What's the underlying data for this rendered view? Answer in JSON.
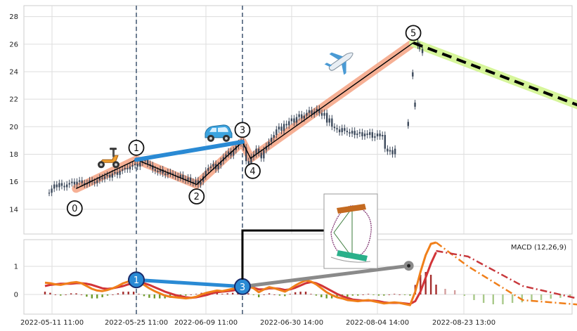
{
  "chart_data": [
    {
      "type": "candlestick",
      "panel": "price",
      "ylim": [
        12.2,
        28.8
      ],
      "yticks": [
        14,
        16,
        18,
        20,
        22,
        24,
        26,
        28
      ],
      "grid": true,
      "colors": {
        "candle": "#3d4a5c",
        "wave": "#f4a283",
        "wave_line": "#000000",
        "connector": "#2a8ad4",
        "projection_glow": "#d6f59a",
        "projection_line": "#000000",
        "vline": "#4a5f78"
      },
      "vertical_markers_x": [
        "2022-05-25 11:00",
        "2022-06-18 11:00"
      ],
      "wave_points": [
        {
          "label": "0",
          "x": "2022-05-15 11:00",
          "y": 15.5
        },
        {
          "label": "1",
          "x": "2022-05-25 11:00",
          "y": 17.6
        },
        {
          "label": "2",
          "x": "2022-06-07 11:00",
          "y": 15.8
        },
        {
          "label": "3",
          "x": "2022-06-18 11:00",
          "y": 18.9
        },
        {
          "label": "4",
          "x": "2022-06-20 11:00",
          "y": 17.7
        },
        {
          "label": "5",
          "x": "2022-08-12 11:00",
          "y": 26.1
        }
      ],
      "connector_1_3": [
        {
          "x": "2022-05-25 11:00",
          "y": 17.6
        },
        {
          "x": "2022-06-18 11:00",
          "y": 18.9
        }
      ],
      "projection": [
        {
          "x": "2022-08-12 11:00",
          "y": 26.1
        },
        {
          "x": "2022-09-28 11:00",
          "y": 20.2
        }
      ],
      "candles_close": [
        15.2,
        15.5,
        15.8,
        15.6,
        15.9,
        15.7,
        15.6,
        15.8,
        15.9,
        16.0,
        15.8,
        16.0,
        16.1,
        15.9,
        15.8,
        15.9,
        16.1,
        16.0,
        15.9,
        16.1,
        16.3,
        16.2,
        16.4,
        16.5,
        16.3,
        16.6,
        16.7,
        16.5,
        16.8,
        16.9,
        17.0,
        16.9,
        17.1,
        17.2,
        17.3,
        17.1,
        17.4,
        17.5,
        17.6,
        17.3,
        17.2,
        16.9,
        16.8,
        16.7,
        16.9,
        16.6,
        16.5,
        16.7,
        16.6,
        16.5,
        16.4,
        16.3,
        16.5,
        16.2,
        16.1,
        16.3,
        16.0,
        15.9,
        16.1,
        15.8,
        16.0,
        16.4,
        16.8,
        17.0,
        17.1,
        17.3,
        16.9,
        17.2,
        17.5,
        17.8,
        18.0,
        18.2,
        17.9,
        18.3,
        18.6,
        18.8,
        18.9,
        18.5,
        17.5,
        17.3,
        17.8,
        18.0,
        18.4,
        18.1,
        17.7,
        18.3,
        18.6,
        18.9,
        19.2,
        19.4,
        19.8,
        20.0,
        19.7,
        20.2,
        20.1,
        20.4,
        20.6,
        20.3,
        20.7,
        20.9,
        20.6,
        20.8,
        21.0,
        21.2,
        20.9,
        21.1,
        21.3,
        21.0,
        20.8,
        21.0,
        20.3,
        20.6,
        20.0,
        19.9,
        19.8,
        19.6,
        19.9,
        19.7,
        19.6,
        19.5,
        19.7,
        19.4,
        19.5,
        19.6,
        19.3,
        19.5,
        19.4,
        19.6,
        19.2,
        19.3,
        19.5,
        19.3,
        19.4,
        18.4,
        18.2,
        18.3,
        18.0,
        18.4
      ],
      "late_points": [
        {
          "x": "2022-08-11 08:00",
          "y": 20.2
        },
        {
          "x": "2022-08-12 08:00",
          "y": 23.8
        },
        {
          "x": "2022-08-12 20:00",
          "y": 21.6
        },
        {
          "x": "2022-08-13 11:00",
          "y": 26.0
        },
        {
          "x": "2022-08-13 20:00",
          "y": 25.8
        },
        {
          "x": "2022-08-14 11:00",
          "y": 25.5
        }
      ],
      "xticks": [
        "2022-05-11 11:00",
        "2022-05-25 11:00",
        "2022-06-09 11:00",
        "2022-06-30 14:00",
        "2022-08-04 14:00",
        "2022-08-23 13:00"
      ]
    },
    {
      "type": "line",
      "panel": "macd",
      "legend_text": "MACD (12,26,9)",
      "legend_position": "top-right",
      "ylim": [
        -0.7,
        1.95
      ],
      "yticks": [
        0,
        1
      ],
      "grid": true,
      "series": [
        {
          "role": "macd",
          "color": "#f07f1a",
          "width": 3
        },
        {
          "role": "signal",
          "color": "#d23438",
          "width": 3
        },
        {
          "role": "macd-projection",
          "color": "#f07f1a",
          "dash": "dash-dot"
        },
        {
          "role": "signal-projection",
          "color": "#c8383c",
          "dash": "dash-dot"
        }
      ],
      "macd_values": [
        0.42,
        0.4,
        0.36,
        0.34,
        0.38,
        0.42,
        0.44,
        0.4,
        0.3,
        0.2,
        0.14,
        0.12,
        0.16,
        0.22,
        0.3,
        0.4,
        0.46,
        0.5,
        0.44,
        0.34,
        0.22,
        0.12,
        0.04,
        -0.04,
        -0.08,
        -0.1,
        -0.12,
        -0.14,
        -0.12,
        -0.08,
        0.0,
        0.06,
        0.1,
        0.14,
        0.12,
        0.16,
        0.2,
        0.24,
        0.26,
        0.3,
        0.22,
        0.08,
        0.18,
        0.26,
        0.22,
        0.16,
        0.1,
        0.2,
        0.32,
        0.42,
        0.5,
        0.46,
        0.36,
        0.22,
        0.08,
        -0.02,
        -0.1,
        -0.14,
        -0.2,
        -0.22,
        -0.24,
        -0.22,
        -0.2,
        -0.24,
        -0.28,
        -0.32,
        -0.3,
        -0.28,
        -0.3,
        -0.34,
        -0.38,
        0.1,
        0.8,
        1.4,
        1.8,
        1.85
      ],
      "signal_values": [
        0.3,
        0.34,
        0.36,
        0.38,
        0.38,
        0.38,
        0.4,
        0.4,
        0.38,
        0.34,
        0.28,
        0.22,
        0.2,
        0.22,
        0.26,
        0.3,
        0.36,
        0.4,
        0.42,
        0.4,
        0.34,
        0.26,
        0.18,
        0.1,
        0.04,
        -0.02,
        -0.06,
        -0.1,
        -0.12,
        -0.1,
        -0.06,
        -0.02,
        0.04,
        0.08,
        0.1,
        0.12,
        0.14,
        0.18,
        0.22,
        0.26,
        0.24,
        0.18,
        0.18,
        0.22,
        0.22,
        0.2,
        0.16,
        0.18,
        0.24,
        0.32,
        0.4,
        0.44,
        0.4,
        0.32,
        0.22,
        0.12,
        0.02,
        -0.06,
        -0.12,
        -0.18,
        -0.2,
        -0.22,
        -0.22,
        -0.22,
        -0.24,
        -0.28,
        -0.3,
        -0.3,
        -0.3,
        -0.32,
        -0.34,
        -0.24,
        0.1,
        0.6,
        1.1,
        1.5
      ],
      "histogram_values": [
        0.1,
        0.06,
        0.0,
        -0.04,
        0.0,
        0.04,
        0.04,
        0.0,
        -0.08,
        -0.14,
        -0.14,
        -0.1,
        -0.04,
        0.0,
        0.04,
        0.1,
        0.1,
        0.1,
        0.02,
        -0.06,
        -0.12,
        -0.14,
        -0.14,
        -0.14,
        -0.12,
        -0.08,
        -0.06,
        -0.04,
        0.0,
        0.02,
        0.06,
        0.08,
        0.06,
        0.06,
        0.02,
        0.04,
        0.06,
        0.06,
        0.04,
        0.04,
        -0.02,
        -0.1,
        0.0,
        0.04,
        0.0,
        -0.04,
        -0.06,
        0.02,
        0.08,
        0.1,
        0.1,
        0.02,
        -0.04,
        -0.1,
        -0.14,
        -0.14,
        -0.12,
        -0.08,
        -0.08,
        -0.04,
        -0.04,
        0.0,
        0.02,
        -0.02,
        -0.04,
        -0.04,
        0.0,
        0.02,
        0.0,
        -0.02,
        -0.04,
        0.34,
        0.7,
        0.8,
        0.7,
        0.35
      ],
      "projection_macd": [
        {
          "x": "2022-08-17 11:00",
          "y": 1.85
        },
        {
          "x": "2022-08-24 11:00",
          "y": 1.0
        },
        {
          "x": "2022-09-05 11:00",
          "y": -0.2
        },
        {
          "x": "2022-09-28 11:00",
          "y": -0.5
        }
      ],
      "projection_signal": [
        {
          "x": "2022-08-17 11:00",
          "y": 1.55
        },
        {
          "x": "2022-08-24 11:00",
          "y": 1.35
        },
        {
          "x": "2022-09-05 11:00",
          "y": 0.3
        },
        {
          "x": "2022-09-28 11:00",
          "y": -0.55
        }
      ],
      "projection_histogram": [
        0.2,
        0.15,
        -0.05,
        -0.2,
        -0.3,
        -0.35,
        -0.35,
        -0.3,
        -0.28,
        -0.25,
        -0.2,
        -0.15,
        -0.12,
        -0.1,
        -0.08,
        -0.06,
        -0.04,
        -0.03,
        -0.02,
        -0.01
      ],
      "wave_markers": [
        {
          "label": "1",
          "x": "2022-05-25 11:00",
          "y": 0.52,
          "color": "#2a8ad4"
        },
        {
          "label": "3",
          "x": "2022-06-18 11:00",
          "y": 0.28,
          "color": "#2a8ad4"
        }
      ],
      "grey_connector": [
        {
          "x": "2022-06-18 11:00",
          "y": 0.28
        },
        {
          "x": "2022-08-11 11:00",
          "y": 1.02
        }
      ],
      "xticks": [
        "2022-05-11 11:00",
        "2022-05-25 11:00",
        "2022-06-09 11:00",
        "2022-06-30 14:00",
        "2022-08-04 14:00",
        "2022-08-23 13:00"
      ]
    }
  ],
  "icons": {
    "wave1": "scooter-icon",
    "wave3": "car-icon",
    "wave5": "airplane-icon",
    "inset": "rollercoaster-icon"
  }
}
